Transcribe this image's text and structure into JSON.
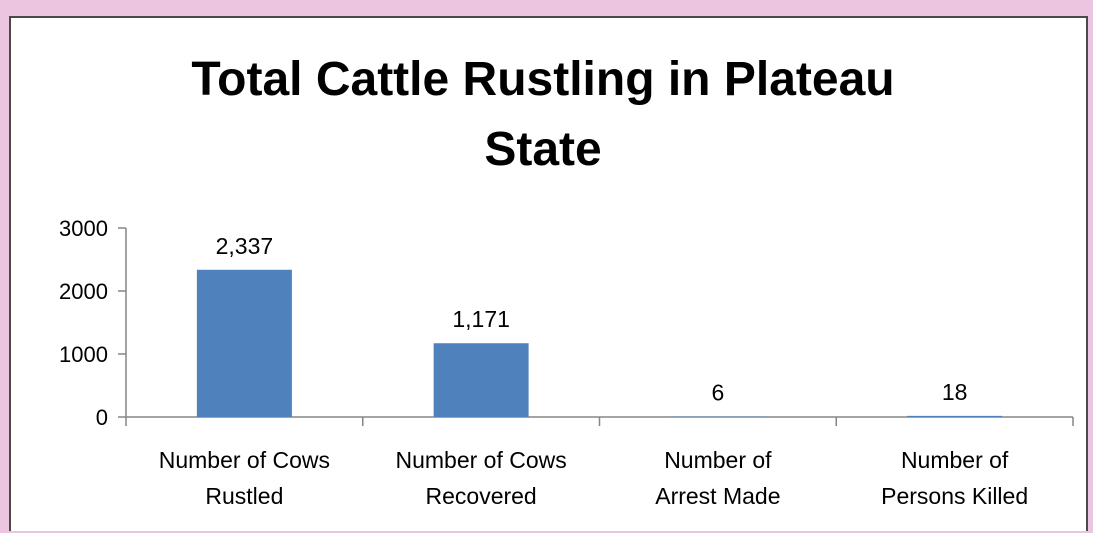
{
  "chart_data": {
    "type": "bar",
    "title_lines": [
      "Total Cattle Rustling in Plateau",
      "State"
    ],
    "categories": [
      [
        "Number of Cows",
        "Rustled"
      ],
      [
        "Number of Cows",
        "Recovered"
      ],
      [
        "Number of",
        "Arrest Made"
      ],
      [
        "Number of",
        "Persons Killed"
      ]
    ],
    "values": [
      2337,
      1171,
      6,
      18
    ],
    "value_labels": [
      "2,337",
      "1,171",
      "6",
      "18"
    ],
    "yticks": [
      "0",
      "1000",
      "2000",
      "3000"
    ],
    "ylim": [
      0,
      3000
    ],
    "grid": false,
    "legend": "none",
    "bar_color": "#4f81bd"
  }
}
